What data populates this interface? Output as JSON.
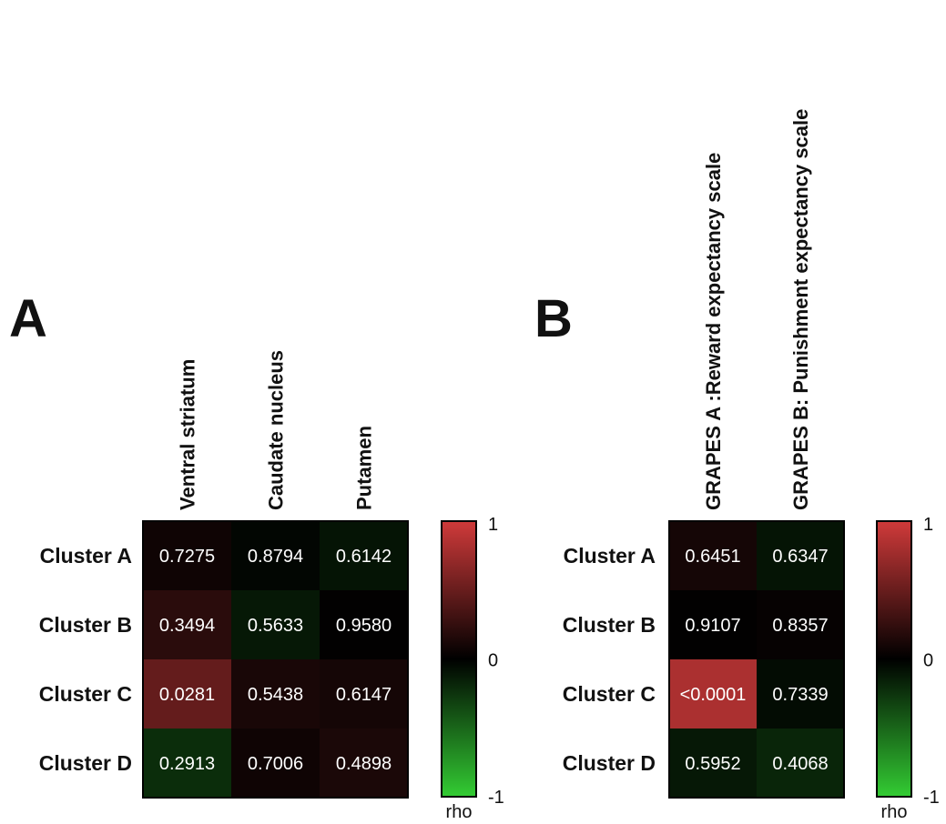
{
  "chart_data": [
    {
      "type": "heatmap",
      "panel": "A",
      "rows": [
        "Cluster A",
        "Cluster B",
        "Cluster C",
        "Cluster D"
      ],
      "columns": [
        "Ventral striatum",
        "Caudate nucleus",
        "Putamen"
      ],
      "cell_labels": [
        [
          "0.7275",
          "0.8794",
          "0.6142"
        ],
        [
          "0.3494",
          "0.5633",
          "0.9580"
        ],
        [
          "0.0281",
          "0.5438",
          "0.6147"
        ],
        [
          "0.2913",
          "0.7006",
          "0.4898"
        ]
      ],
      "rho": [
        [
          0.07,
          -0.03,
          -0.1
        ],
        [
          0.2,
          -0.12,
          0.01
        ],
        [
          0.48,
          0.12,
          0.1
        ],
        [
          -0.22,
          0.07,
          0.13
        ]
      ],
      "colorbar": {
        "label": "rho",
        "min": -1,
        "max": 1,
        "ticks": [
          "1",
          "0",
          "-1"
        ],
        "color_high": "#d03a3a",
        "color_mid": "#000000",
        "color_low": "#33cc33"
      }
    },
    {
      "type": "heatmap",
      "panel": "B",
      "rows": [
        "Cluster A",
        "Cluster B",
        "Cluster C",
        "Cluster D"
      ],
      "columns": [
        "GRAPES A :Reward expectancy scale",
        "GRAPES B: Punishment expectancy scale"
      ],
      "cell_labels": [
        [
          "0.6451",
          "0.6347"
        ],
        [
          "0.9107",
          "0.8357"
        ],
        [
          "<0.0001",
          "0.7339"
        ],
        [
          "0.5952",
          "0.4068"
        ]
      ],
      "rho": [
        [
          0.1,
          -0.1
        ],
        [
          0.01,
          0.03
        ],
        [
          0.82,
          -0.06
        ],
        [
          -0.12,
          -0.18
        ]
      ],
      "colorbar": {
        "label": "rho",
        "min": -1,
        "max": 1,
        "ticks": [
          "1",
          "0",
          "-1"
        ],
        "color_high": "#d03a3a",
        "color_mid": "#000000",
        "color_low": "#33cc33"
      }
    }
  ]
}
